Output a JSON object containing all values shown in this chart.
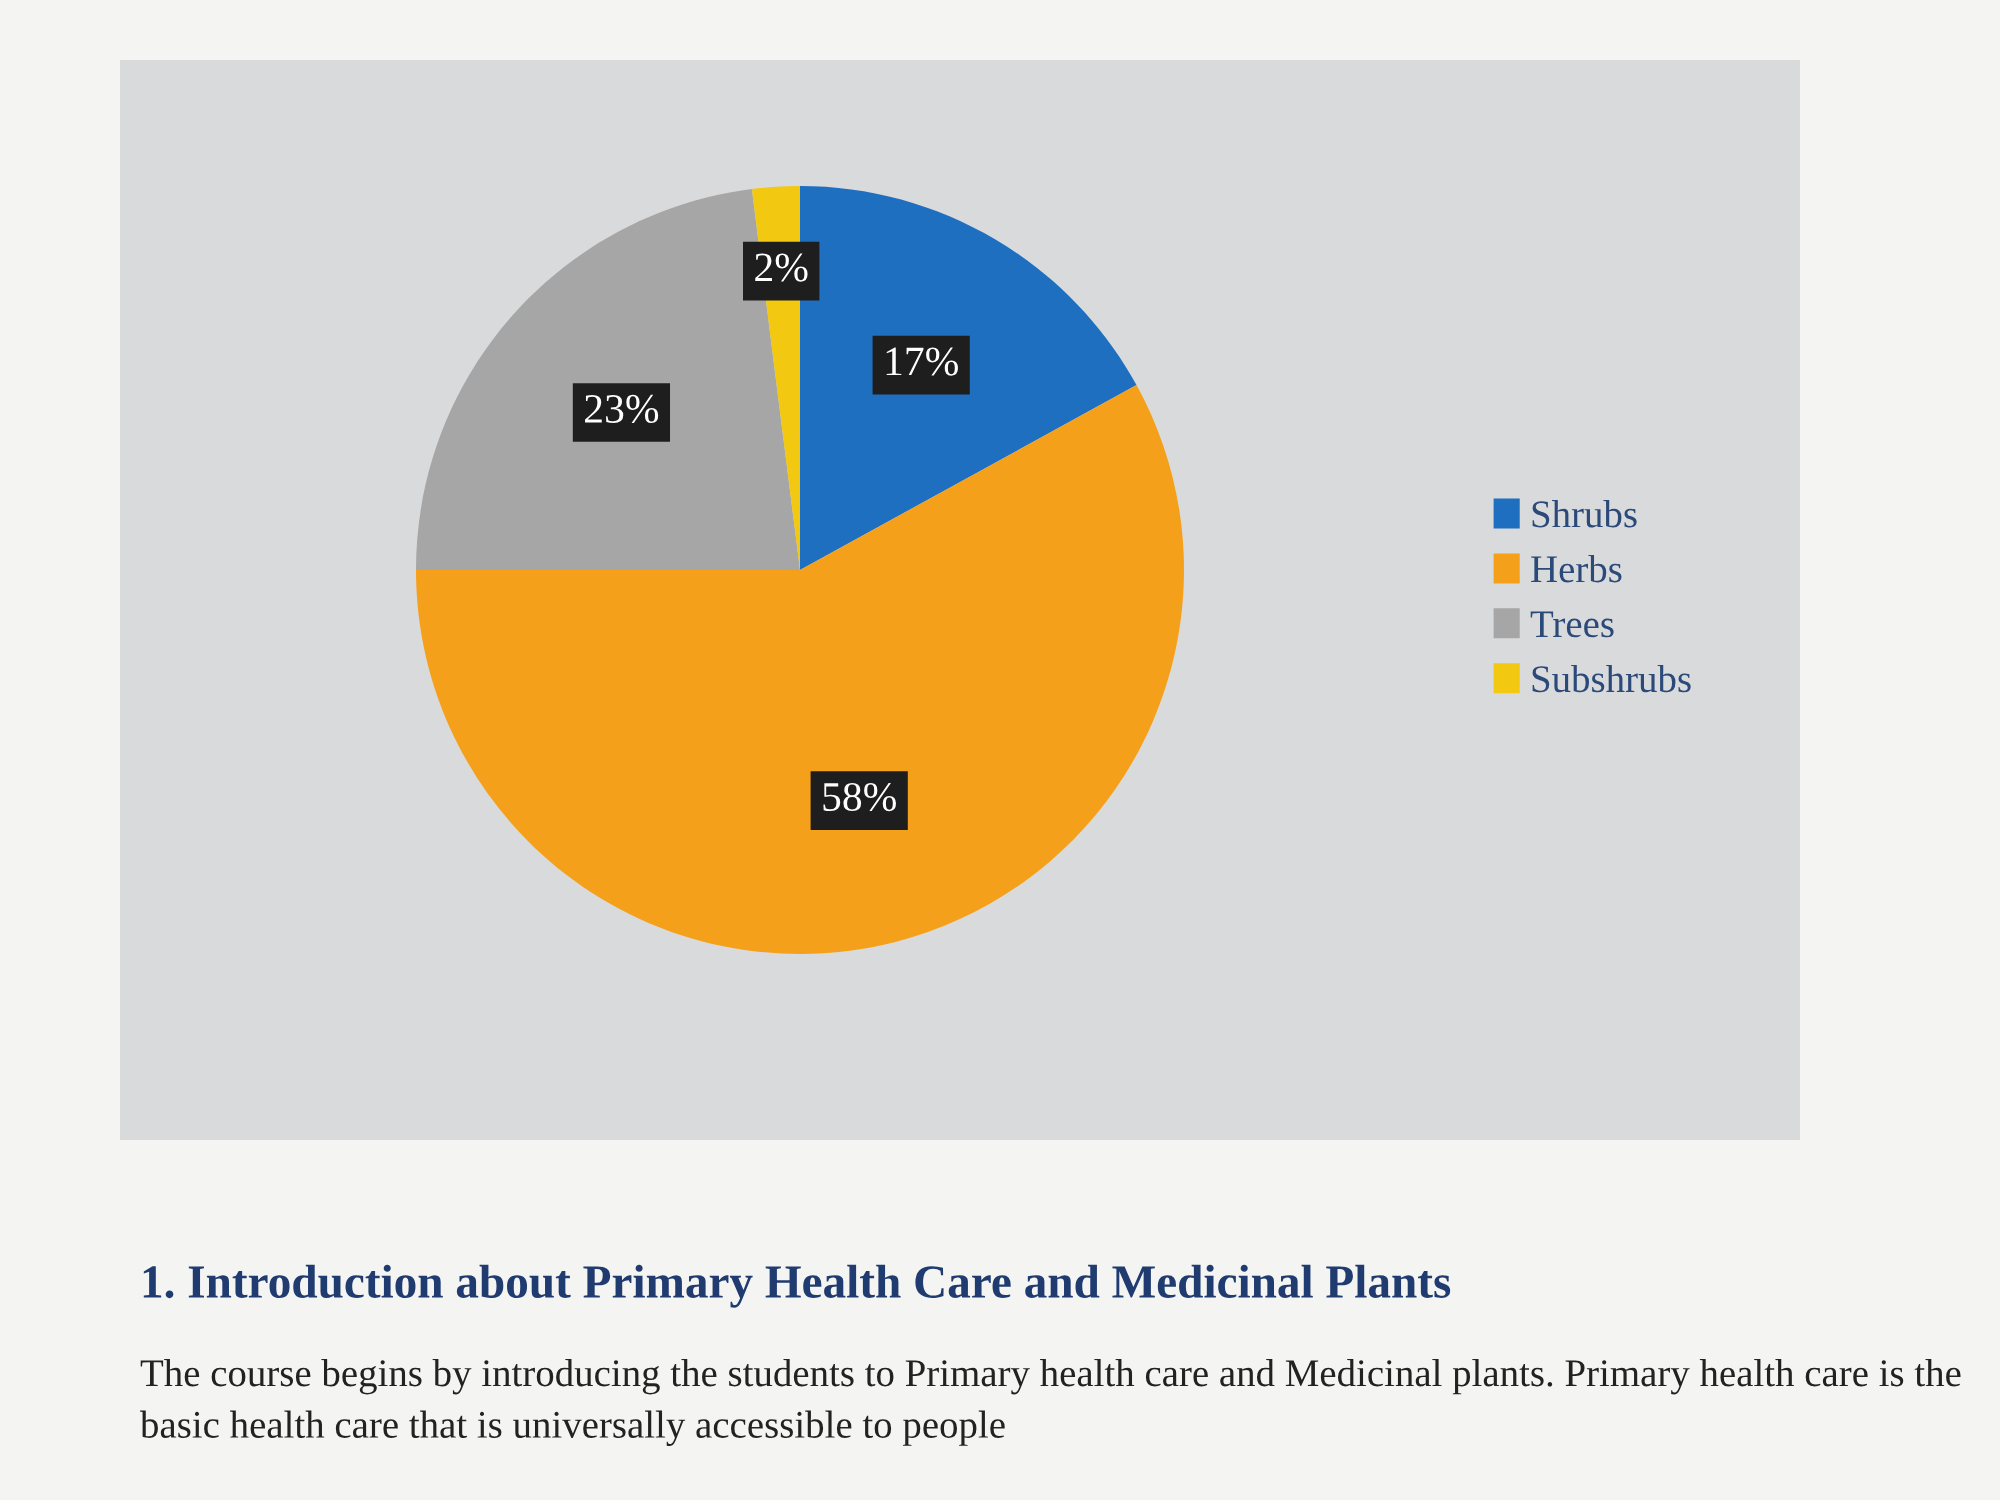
{
  "chart_data": {
    "type": "pie",
    "categories": [
      "Shrubs",
      "Herbs",
      "Trees",
      "Subshrubs"
    ],
    "values": [
      17,
      58,
      23,
      2
    ],
    "colors": [
      "#1f6fc0",
      "#f5a01a",
      "#a6a6a6",
      "#f2c811"
    ],
    "value_labels": [
      "17%",
      "58%",
      "23%",
      "2%"
    ],
    "legend": "right",
    "annotations": [
      "1. Introduction about Primary Health Care and Medicinal Plants",
      "The course begins by introducing the students to Primary health care and Medicinal plants. Primary health care is the basic health care that is universally accessible to people"
    ]
  }
}
